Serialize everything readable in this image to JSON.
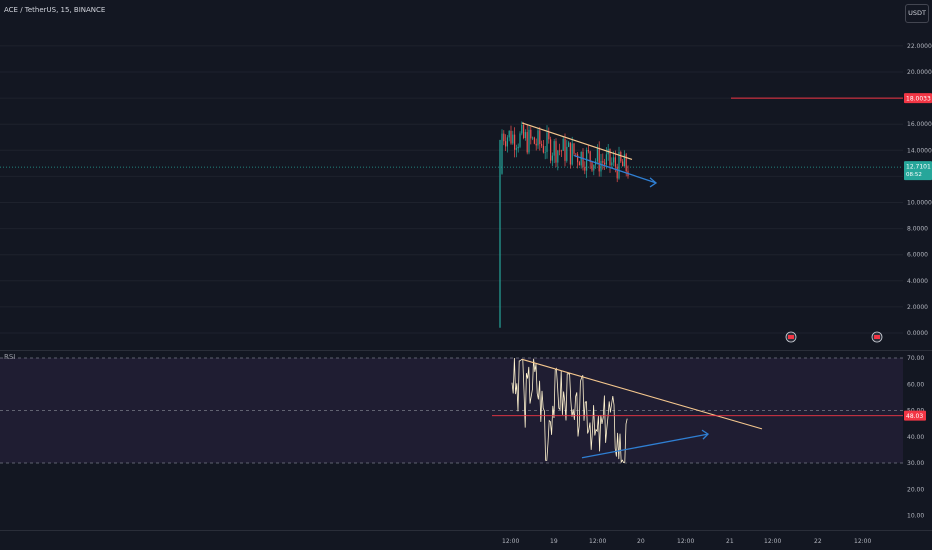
{
  "header": {
    "symbol_line": "ACE / TetherUS, 15, BINANCE",
    "currency": "USDT"
  },
  "rsi_pane": {
    "label": "RSI"
  },
  "colors": {
    "background": "#131722",
    "axis_text": "#b2b5be",
    "price_line": "#26a69a",
    "candle_up": "#26a69a",
    "candle_down": "#ef5350",
    "alert_line": "#f23645",
    "rsi_line": "#fff3cf",
    "rsi_band": "#2a2240",
    "trendline_upper": "#f5c78e",
    "trendline_lower": "#2f7fd3",
    "event_badge": "#f23645"
  },
  "chart_data": [
    {
      "type": "candlestick",
      "name": "price",
      "y_ticks": [
        "22.0000",
        "20.0000",
        "18.0000",
        "16.0000",
        "14.0000",
        "12.0000",
        "10.0000",
        "8.0000",
        "6.0000",
        "4.0000",
        "2.0000",
        "0.0000"
      ],
      "ylim": [
        -0.7,
        24.5
      ],
      "x_labels": [
        "12:00",
        "19",
        "12:00",
        "20",
        "12:00",
        "21",
        "12:00",
        "22",
        "12:00"
      ],
      "current_price": {
        "value": "12.7101",
        "countdown": "08:52",
        "numeric": 12.71
      },
      "alert_level": {
        "value": "18.0033",
        "numeric": 18.0
      },
      "series_summary": {
        "start_low": 0.4,
        "high": 16.3,
        "last": 12.71
      },
      "trendlines": [
        {
          "color": "upper",
          "from": [
            0.0,
            16.1
          ],
          "to": [
            1.0,
            13.3
          ]
        },
        {
          "color": "lower",
          "arrow": true,
          "from": [
            0.0,
            13.6
          ],
          "to": [
            1.0,
            11.5
          ]
        }
      ]
    },
    {
      "type": "line",
      "name": "RSI",
      "y_ticks": [
        "70.00",
        "60.00",
        "50.00",
        "40.00",
        "30.00",
        "20.00",
        "10.00"
      ],
      "ylim": [
        3,
        72
      ],
      "bands": [
        30,
        50,
        70
      ],
      "current_value": {
        "value": "48.03",
        "numeric": 48.03
      },
      "range_observed": [
        30.2,
        70.0
      ]
    }
  ]
}
